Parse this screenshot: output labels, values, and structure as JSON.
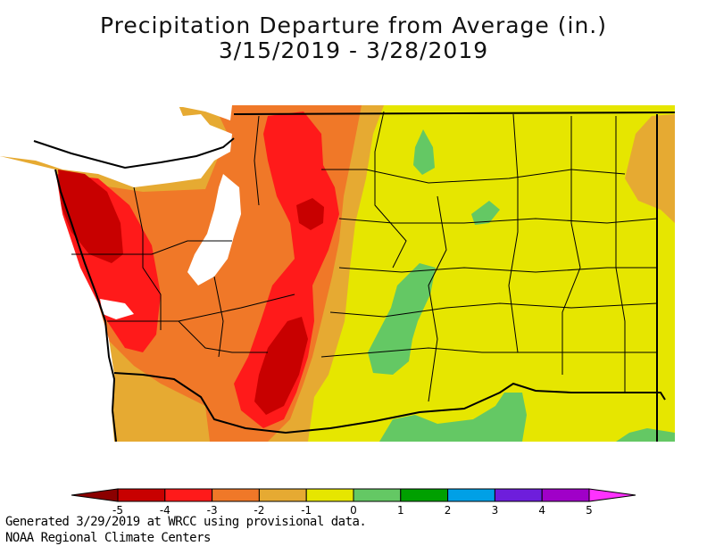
{
  "title": "Precipitation Departure from Average (in.)",
  "date_range": "3/15/2019 - 3/28/2019",
  "legend": {
    "ticks": [
      "-5",
      "-4",
      "-3",
      "-2",
      "-1",
      "0",
      "1",
      "2",
      "3",
      "4",
      "5"
    ],
    "colors": [
      "#8b0000",
      "#c80000",
      "#ff1a1a",
      "#f07828",
      "#e6aa32",
      "#e6e600",
      "#64c864",
      "#00a000",
      "#00a0e6",
      "#6e1edc",
      "#a000c8",
      "#ff32ff"
    ]
  },
  "map_colors": {
    "water": "#ffffff",
    "deep_red": "#c80000",
    "red": "#ff1a1a",
    "orange": "#f07828",
    "light_orange": "#e6aa32",
    "yellow": "#e6e600",
    "green": "#64c864"
  },
  "footer": {
    "line1": "Generated 3/29/2019 at WRCC using provisional data.",
    "line2": "NOAA Regional Climate Centers"
  }
}
